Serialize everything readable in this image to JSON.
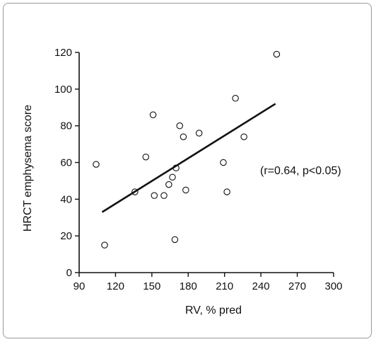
{
  "chart_data": {
    "type": "scatter",
    "xlabel": "RV, % pred",
    "ylabel": "HRCT emphysema score",
    "xlim": [
      90,
      300
    ],
    "ylim": [
      0,
      120
    ],
    "xticks": [
      90,
      120,
      150,
      180,
      210,
      240,
      270,
      300
    ],
    "yticks": [
      0,
      20,
      40,
      60,
      80,
      100,
      120
    ],
    "grid": false,
    "annotation": "(r=0.64, p<0.05)",
    "marker": "open-circle",
    "points": [
      {
        "x": 104,
        "y": 59
      },
      {
        "x": 111,
        "y": 15
      },
      {
        "x": 136,
        "y": 44
      },
      {
        "x": 145,
        "y": 63
      },
      {
        "x": 151,
        "y": 86
      },
      {
        "x": 152,
        "y": 42
      },
      {
        "x": 160,
        "y": 42
      },
      {
        "x": 164,
        "y": 48
      },
      {
        "x": 167,
        "y": 52
      },
      {
        "x": 169,
        "y": 18
      },
      {
        "x": 170,
        "y": 57
      },
      {
        "x": 173,
        "y": 80
      },
      {
        "x": 176,
        "y": 74
      },
      {
        "x": 178,
        "y": 45
      },
      {
        "x": 189,
        "y": 76
      },
      {
        "x": 209,
        "y": 60
      },
      {
        "x": 212,
        "y": 44
      },
      {
        "x": 219,
        "y": 95
      },
      {
        "x": 226,
        "y": 74
      },
      {
        "x": 253,
        "y": 119
      }
    ],
    "regression_line": {
      "x": [
        109,
        252
      ],
      "y": [
        33,
        92
      ]
    }
  }
}
